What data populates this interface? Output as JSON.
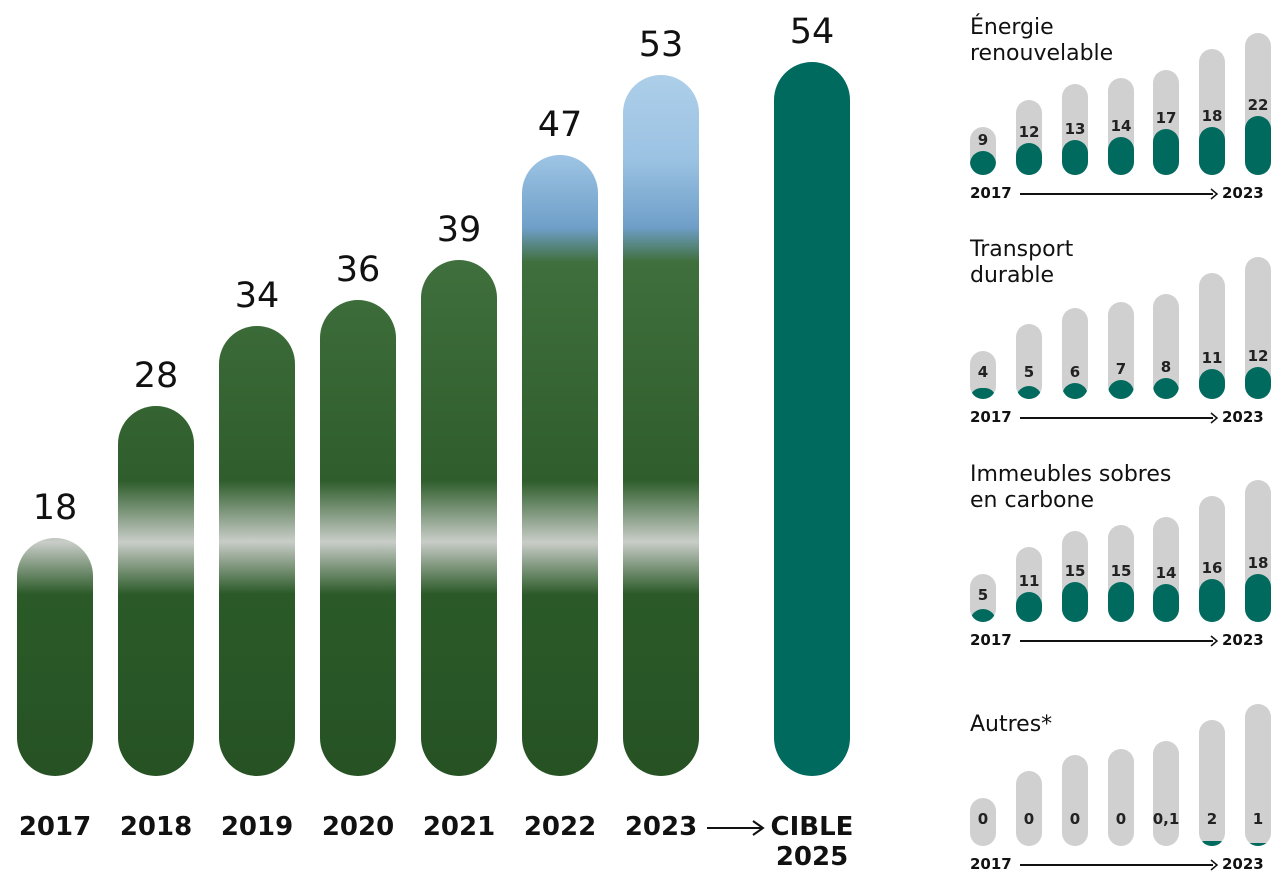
{
  "chart_data": [
    {
      "type": "bar",
      "categories": [
        "2017",
        "2018",
        "2019",
        "2020",
        "2021",
        "2022",
        "2023",
        "CIBLE\n2025"
      ],
      "values": [
        18,
        28,
        34,
        36,
        39,
        47,
        53,
        54
      ],
      "color": "#006a5e",
      "ylim": [
        0,
        54
      ]
    },
    {
      "type": "bar",
      "title": "Énergie\nrenouvelable",
      "categories": [
        "2017",
        null,
        null,
        null,
        null,
        null,
        "2023"
      ],
      "values": [
        9,
        12,
        13,
        14,
        17,
        18,
        22
      ],
      "color": "#006a5e",
      "ylim": [
        0,
        54
      ]
    },
    {
      "type": "bar",
      "title": "Transport\ndurable",
      "categories": [
        "2017",
        null,
        null,
        null,
        null,
        null,
        "2023"
      ],
      "values": [
        4,
        5,
        6,
        7,
        8,
        11,
        12
      ],
      "color": "#006a5e",
      "ylim": [
        0,
        54
      ]
    },
    {
      "type": "bar",
      "title": "Immeubles sobres\nen carbone",
      "categories": [
        "2017",
        null,
        null,
        null,
        null,
        null,
        "2023"
      ],
      "values": [
        5,
        11,
        15,
        15,
        14,
        16,
        18
      ],
      "color": "#006a5e",
      "ylim": [
        0,
        54
      ]
    },
    {
      "type": "bar",
      "title": "Autres*",
      "categories": [
        "2017",
        null,
        null,
        null,
        null,
        null,
        "2023"
      ],
      "values": [
        0,
        0,
        0,
        0,
        0.1,
        2,
        1
      ],
      "value_labels": [
        "0",
        "0",
        "0",
        "0",
        "0,1",
        "2",
        "1"
      ],
      "color": "#006a5e",
      "ylim": [
        0,
        54
      ]
    }
  ]
}
